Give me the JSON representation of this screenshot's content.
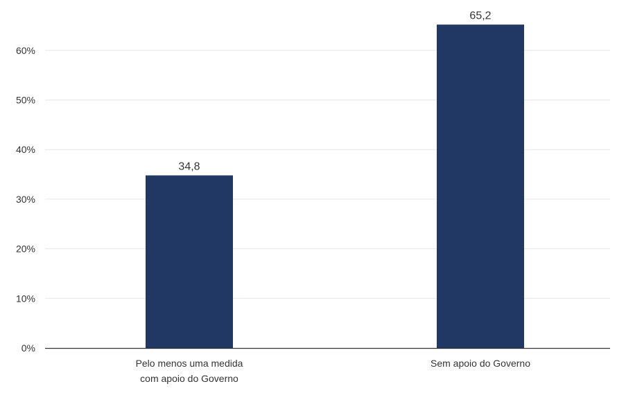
{
  "colors": {
    "bar": "#213864",
    "grid": "#e6e6e6",
    "axis": "#333333",
    "text": "#333333"
  },
  "chart_data": {
    "type": "bar",
    "title": "",
    "xlabel": "",
    "ylabel": "",
    "categories": [
      [
        "Pelo menos uma medida",
        "com apoio do Governo"
      ],
      [
        "Sem apoio do Governo"
      ]
    ],
    "values": [
      34.8,
      65.2
    ],
    "data_labels": [
      "34,8",
      "65,2"
    ],
    "ylim": [
      0,
      70
    ],
    "yticks": [
      0,
      10,
      20,
      30,
      40,
      50,
      60
    ],
    "ytick_labels": [
      "0%",
      "10%",
      "20%",
      "30%",
      "40%",
      "50%",
      "60%"
    ],
    "grid": true,
    "legend": "none"
  }
}
